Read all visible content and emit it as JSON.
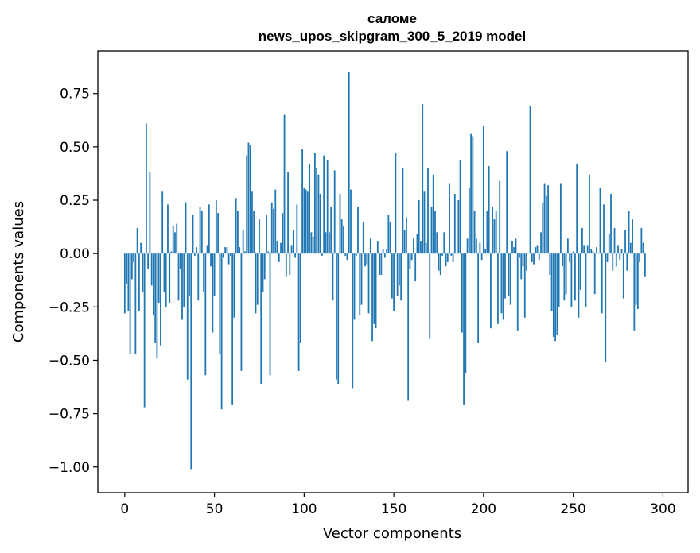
{
  "chart_data": {
    "type": "bar",
    "title": "саломе",
    "subtitle": "news_upos_skipgram_300_5_2019 model",
    "xlabel": "Vector components",
    "ylabel": "Components values",
    "xlim": [
      -15,
      314
    ],
    "ylim": [
      -1.12,
      0.95
    ],
    "xticks": [
      0,
      50,
      100,
      150,
      200,
      250,
      300
    ],
    "yticks": [
      -1.0,
      -0.75,
      -0.5,
      -0.25,
      0.0,
      0.25,
      0.5,
      0.75
    ],
    "ytick_labels": [
      "−1.00",
      "−0.75",
      "−0.50",
      "−0.25",
      "0.00",
      "0.25",
      "0.50",
      "0.75"
    ],
    "xtick_labels": [
      "0",
      "50",
      "100",
      "150",
      "200",
      "250",
      "300"
    ],
    "bar_color": "#1f77b4",
    "grid": false,
    "values": [
      -0.28,
      -0.14,
      -0.27,
      -0.47,
      -0.12,
      -0.04,
      -0.47,
      0.12,
      -0.27,
      0.05,
      -0.18,
      -0.72,
      0.61,
      -0.07,
      0.38,
      -0.15,
      -0.29,
      -0.42,
      -0.49,
      -0.23,
      -0.43,
      0.29,
      -0.18,
      -0.25,
      0.23,
      -0.23,
      0.01,
      0.13,
      0.1,
      0.14,
      -0.22,
      -0.07,
      -0.31,
      -0.25,
      0.24,
      -0.59,
      -0.2,
      -1.01,
      0.18,
      -0.01,
      0.03,
      -0.22,
      0.22,
      0.2,
      -0.18,
      -0.57,
      0.04,
      0.23,
      -0.06,
      -0.37,
      -0.2,
      0.25,
      0.19,
      -0.47,
      -0.73,
      -0.02,
      0.03,
      0.03,
      -0.05,
      -0.01,
      -0.71,
      -0.3,
      0.26,
      0.2,
      0.03,
      -0.55,
      0.11,
      0.01,
      0.46,
      0.52,
      0.51,
      0.29,
      0.2,
      -0.28,
      -0.24,
      0.16,
      -0.61,
      -0.18,
      -0.12,
      0.18,
      0.01,
      -0.57,
      0.24,
      0.21,
      0.3,
      0.06,
      -0.04,
      0.05,
      0.19,
      0.65,
      -0.11,
      0.38,
      -0.1,
      0.04,
      0.11,
      -0.02,
      0.23,
      -0.55,
      -0.42,
      0.49,
      0.31,
      0.3,
      0.29,
      0.42,
      0.1,
      0.08,
      0.47,
      0.4,
      0.37,
      0.28,
      -0.01,
      0.46,
      0.1,
      0.44,
      0.1,
      0.22,
      -0.22,
      0.39,
      -0.59,
      -0.61,
      0.28,
      0.16,
      0.13,
      -0.01,
      -0.03,
      0.85,
      0.3,
      -0.63,
      -0.31,
      -0.01,
      0.22,
      -0.29,
      -0.24,
      0.15,
      -0.06,
      -0.05,
      -0.28,
      0.07,
      -0.41,
      -0.33,
      -0.35,
      0.06,
      -0.1,
      -0.1,
      0.02,
      -0.02,
      0.02,
      0.18,
      0.15,
      -0.21,
      -0.27,
      0.47,
      -0.2,
      -0.15,
      -0.22,
      0.4,
      0.11,
      0.17,
      -0.69,
      -0.07,
      -0.03,
      0.07,
      -0.13,
      0.09,
      0.25,
      0.06,
      0.7,
      0.29,
      0.05,
      0.4,
      -0.4,
      0.22,
      0.37,
      0.2,
      0.1,
      -0.08,
      -0.1,
      -0.01,
      0.1,
      -0.06,
      -0.04,
      0.33,
      -0.01,
      -0.04,
      0.28,
      0.0,
      0.25,
      0.44,
      -0.37,
      -0.71,
      -0.56,
      0.07,
      0.31,
      0.56,
      0.55,
      0.2,
      0.07,
      -0.42,
      0.05,
      -0.03,
      0.6,
      0.02,
      0.2,
      0.41,
      -0.35,
      0.22,
      0.16,
      0.2,
      -0.33,
      0.34,
      -0.28,
      -0.31,
      -0.21,
      0.48,
      -0.2,
      -0.24,
      0.06,
      0.03,
      0.07,
      -0.36,
      -0.02,
      -0.12,
      -0.06,
      -0.3,
      -0.08,
      0.0,
      0.69,
      -0.04,
      -0.05,
      0.03,
      0.04,
      -0.03,
      0.1,
      0.24,
      0.33,
      0.27,
      0.32,
      -0.1,
      -0.27,
      -0.39,
      -0.41,
      -0.38,
      -0.25,
      0.33,
      -0.06,
      -0.22,
      -0.19,
      0.07,
      -0.04,
      -0.25,
      0.01,
      -0.22,
      0.42,
      -0.3,
      -0.17,
      0.12,
      0.04,
      -0.25,
      0.04,
      0.37,
      0.02,
      0.01,
      -0.19,
      0.03,
      0.0,
      0.31,
      -0.28,
      0.23,
      -0.51,
      -0.04,
      0.09,
      0.28,
      -0.08,
      0.12,
      -0.06,
      0.04,
      -0.03,
      0.02,
      -0.21,
      0.11,
      -0.08,
      0.2,
      0.05,
      0.16,
      -0.36,
      -0.24,
      -0.26,
      -0.04,
      0.12,
      0.05,
      -0.11
    ]
  }
}
